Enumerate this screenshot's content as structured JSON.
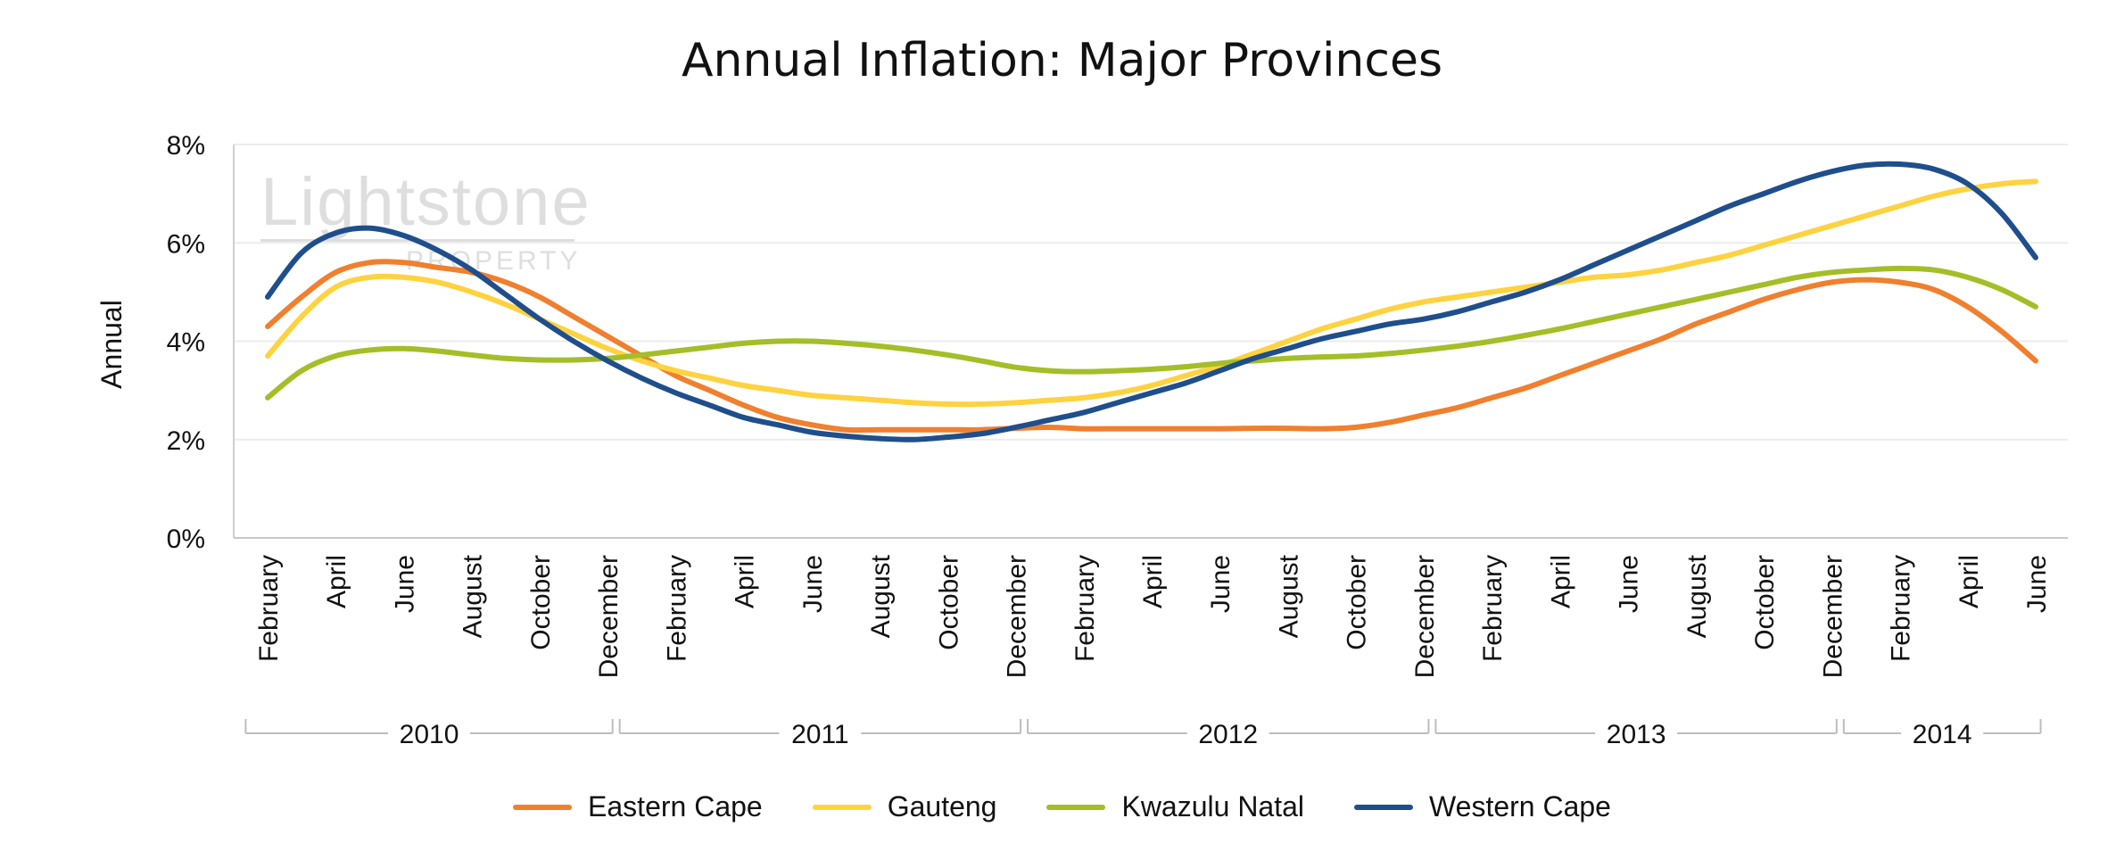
{
  "chart_data": {
    "type": "line",
    "title": "Annual Inflation: Major Provinces",
    "ylabel": "Annual",
    "xlabel": "",
    "ylim": [
      0,
      8
    ],
    "yticks": [
      "0%",
      "2%",
      "4%",
      "6%",
      "8%"
    ],
    "grid": true,
    "legend_position": "bottom",
    "watermark": "Lightstone PROPERTY",
    "x": [
      "Feb 2010",
      "Mar 2010",
      "Apr 2010",
      "May 2010",
      "Jun 2010",
      "Jul 2010",
      "Aug 2010",
      "Sep 2010",
      "Oct 2010",
      "Nov 2010",
      "Dec 2010",
      "Jan 2011",
      "Feb 2011",
      "Mar 2011",
      "Apr 2011",
      "May 2011",
      "Jun 2011",
      "Jul 2011",
      "Aug 2011",
      "Sep 2011",
      "Oct 2011",
      "Nov 2011",
      "Dec 2011",
      "Jan 2012",
      "Feb 2012",
      "Mar 2012",
      "Apr 2012",
      "May 2012",
      "Jun 2012",
      "Jul 2012",
      "Aug 2012",
      "Sep 2012",
      "Oct 2012",
      "Nov 2012",
      "Dec 2012",
      "Jan 2013",
      "Feb 2013",
      "Mar 2013",
      "Apr 2013",
      "May 2013",
      "Jun 2013",
      "Jul 2013",
      "Aug 2013",
      "Sep 2013",
      "Oct 2013",
      "Nov 2013",
      "Dec 2013",
      "Jan 2014",
      "Feb 2014",
      "Mar 2014",
      "Apr 2014",
      "May 2014",
      "Jun 2014"
    ],
    "tick_labels": [
      "February",
      "April",
      "June",
      "August",
      "October",
      "December",
      "February",
      "April",
      "June",
      "August",
      "October",
      "December",
      "February",
      "April",
      "June",
      "August",
      "October",
      "December",
      "February",
      "April",
      "June",
      "August",
      "October",
      "December",
      "February",
      "April",
      "June"
    ],
    "groups": [
      {
        "label": "2010",
        "months": 11
      },
      {
        "label": "2011",
        "months": 12
      },
      {
        "label": "2012",
        "months": 12
      },
      {
        "label": "2013",
        "months": 12
      },
      {
        "label": "2014",
        "months": 6
      }
    ],
    "series": [
      {
        "name": "Eastern Cape",
        "color": "#F07F2E",
        "values": [
          4.3,
          4.9,
          5.4,
          5.6,
          5.6,
          5.5,
          5.4,
          5.2,
          4.9,
          4.5,
          4.1,
          3.7,
          3.3,
          3.0,
          2.7,
          2.45,
          2.3,
          2.2,
          2.2,
          2.2,
          2.2,
          2.2,
          2.23,
          2.25,
          2.22,
          2.22,
          2.22,
          2.22,
          2.22,
          2.23,
          2.23,
          2.22,
          2.25,
          2.35,
          2.5,
          2.65,
          2.85,
          3.05,
          3.3,
          3.55,
          3.8,
          4.05,
          4.35,
          4.6,
          4.85,
          5.05,
          5.2,
          5.25,
          5.2,
          5.05,
          4.7,
          4.2,
          3.6
        ]
      },
      {
        "name": "Gauteng",
        "color": "#FFD23F",
        "values": [
          3.7,
          4.5,
          5.1,
          5.3,
          5.3,
          5.2,
          5.0,
          4.75,
          4.45,
          4.15,
          3.85,
          3.6,
          3.4,
          3.25,
          3.1,
          3.0,
          2.9,
          2.85,
          2.8,
          2.75,
          2.72,
          2.72,
          2.75,
          2.8,
          2.85,
          2.95,
          3.1,
          3.3,
          3.5,
          3.75,
          4.0,
          4.25,
          4.45,
          4.65,
          4.8,
          4.9,
          5.0,
          5.1,
          5.2,
          5.3,
          5.35,
          5.45,
          5.6,
          5.75,
          5.95,
          6.15,
          6.35,
          6.55,
          6.75,
          6.95,
          7.1,
          7.2,
          7.25
        ]
      },
      {
        "name": "Kwazulu Natal",
        "color": "#A4BE27",
        "values": [
          2.85,
          3.4,
          3.7,
          3.82,
          3.85,
          3.8,
          3.72,
          3.65,
          3.62,
          3.62,
          3.65,
          3.72,
          3.8,
          3.88,
          3.96,
          4.0,
          4.0,
          3.96,
          3.9,
          3.82,
          3.72,
          3.6,
          3.47,
          3.4,
          3.38,
          3.4,
          3.43,
          3.48,
          3.55,
          3.6,
          3.65,
          3.68,
          3.7,
          3.75,
          3.82,
          3.9,
          4.0,
          4.12,
          4.25,
          4.4,
          4.55,
          4.7,
          4.85,
          5.0,
          5.15,
          5.3,
          5.4,
          5.45,
          5.48,
          5.45,
          5.3,
          5.05,
          4.7
        ]
      },
      {
        "name": "Western Cape",
        "color": "#1F4E8C",
        "values": [
          4.9,
          5.8,
          6.2,
          6.3,
          6.15,
          5.85,
          5.45,
          4.95,
          4.45,
          4.0,
          3.6,
          3.25,
          2.95,
          2.7,
          2.45,
          2.3,
          2.15,
          2.07,
          2.02,
          2.0,
          2.05,
          2.12,
          2.25,
          2.4,
          2.55,
          2.75,
          2.95,
          3.15,
          3.4,
          3.65,
          3.85,
          4.05,
          4.2,
          4.35,
          4.45,
          4.6,
          4.8,
          5.0,
          5.25,
          5.55,
          5.85,
          6.15,
          6.45,
          6.75,
          7.0,
          7.25,
          7.45,
          7.58,
          7.6,
          7.5,
          7.2,
          6.6,
          5.7
        ]
      }
    ]
  }
}
